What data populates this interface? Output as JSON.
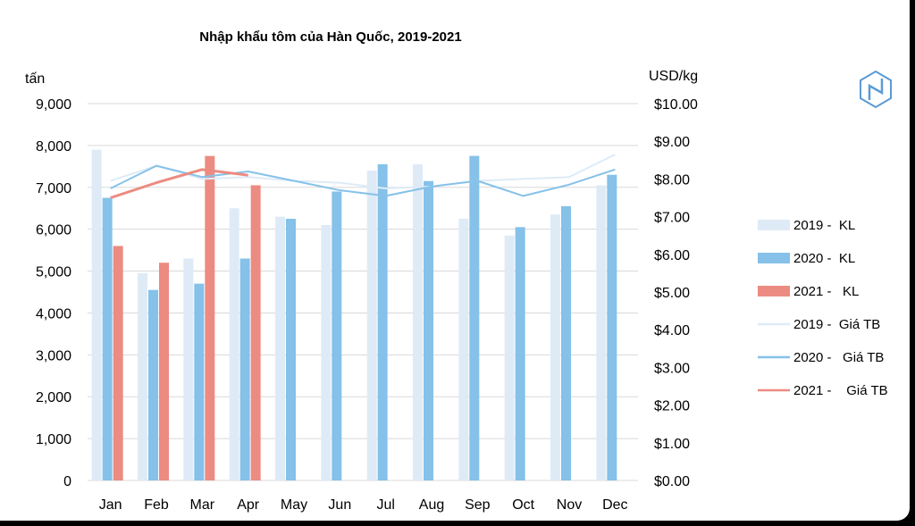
{
  "chart_data": {
    "type": "bar",
    "title": "Nhập khẩu tôm của Hàn Quốc, 2019-2021",
    "y_left_label": "tấn",
    "y_right_label": "USD/kg",
    "categories": [
      "Jan",
      "Feb",
      "Mar",
      "Apr",
      "May",
      "Jun",
      "Jul",
      "Aug",
      "Sep",
      "Oct",
      "Nov",
      "Dec"
    ],
    "y_left_range": [
      0,
      9000
    ],
    "y_left_ticks": [
      "0",
      "1,000",
      "2,000",
      "3,000",
      "4,000",
      "5,000",
      "6,000",
      "7,000",
      "8,000",
      "9,000"
    ],
    "y_right_range": [
      0,
      10
    ],
    "y_right_ticks": [
      "$0.00",
      "$1.00",
      "$2.00",
      "$3.00",
      "$4.00",
      "$5.00",
      "$6.00",
      "$7.00",
      "$8.00",
      "$9.00",
      "$10.00"
    ],
    "grid": true,
    "legend_position": "right",
    "bar_series": [
      {
        "name": "2019 -  KL",
        "color": "#deebf7",
        "values": [
          7900,
          4950,
          5300,
          6500,
          6300,
          6100,
          7400,
          7550,
          6250,
          5850,
          6350,
          7050
        ]
      },
      {
        "name": "2020 -  KL",
        "color": "#85c1e9",
        "values": [
          6750,
          4550,
          4700,
          5300,
          6250,
          6900,
          7550,
          7150,
          7750,
          6050,
          6550,
          7300
        ]
      },
      {
        "name": "2021 -   KL",
        "color": "#ec8b81",
        "values": [
          5600,
          5200,
          7750,
          7050,
          null,
          null,
          null,
          null,
          null,
          null,
          null,
          null
        ]
      }
    ],
    "line_series": [
      {
        "name": "2019 -  Giá TB",
        "color": "#deebf7",
        "values": [
          7.95,
          8.35,
          8.0,
          8.05,
          7.95,
          7.9,
          7.75,
          7.8,
          7.95,
          8.0,
          8.05,
          8.65
        ]
      },
      {
        "name": "2020 -   Giá TB",
        "color": "#85c1e9",
        "values": [
          7.75,
          8.35,
          8.05,
          8.2,
          7.95,
          7.7,
          7.55,
          7.8,
          7.95,
          7.55,
          7.85,
          8.25
        ]
      },
      {
        "name": "2021 -    Giá TB",
        "color": "#ec8b81",
        "values": [
          7.5,
          7.9,
          8.25,
          8.1,
          null,
          null,
          null,
          null,
          null,
          null,
          null,
          null
        ]
      }
    ]
  },
  "logo": {
    "name": "logo-icon",
    "color": "#5b9bd5"
  }
}
